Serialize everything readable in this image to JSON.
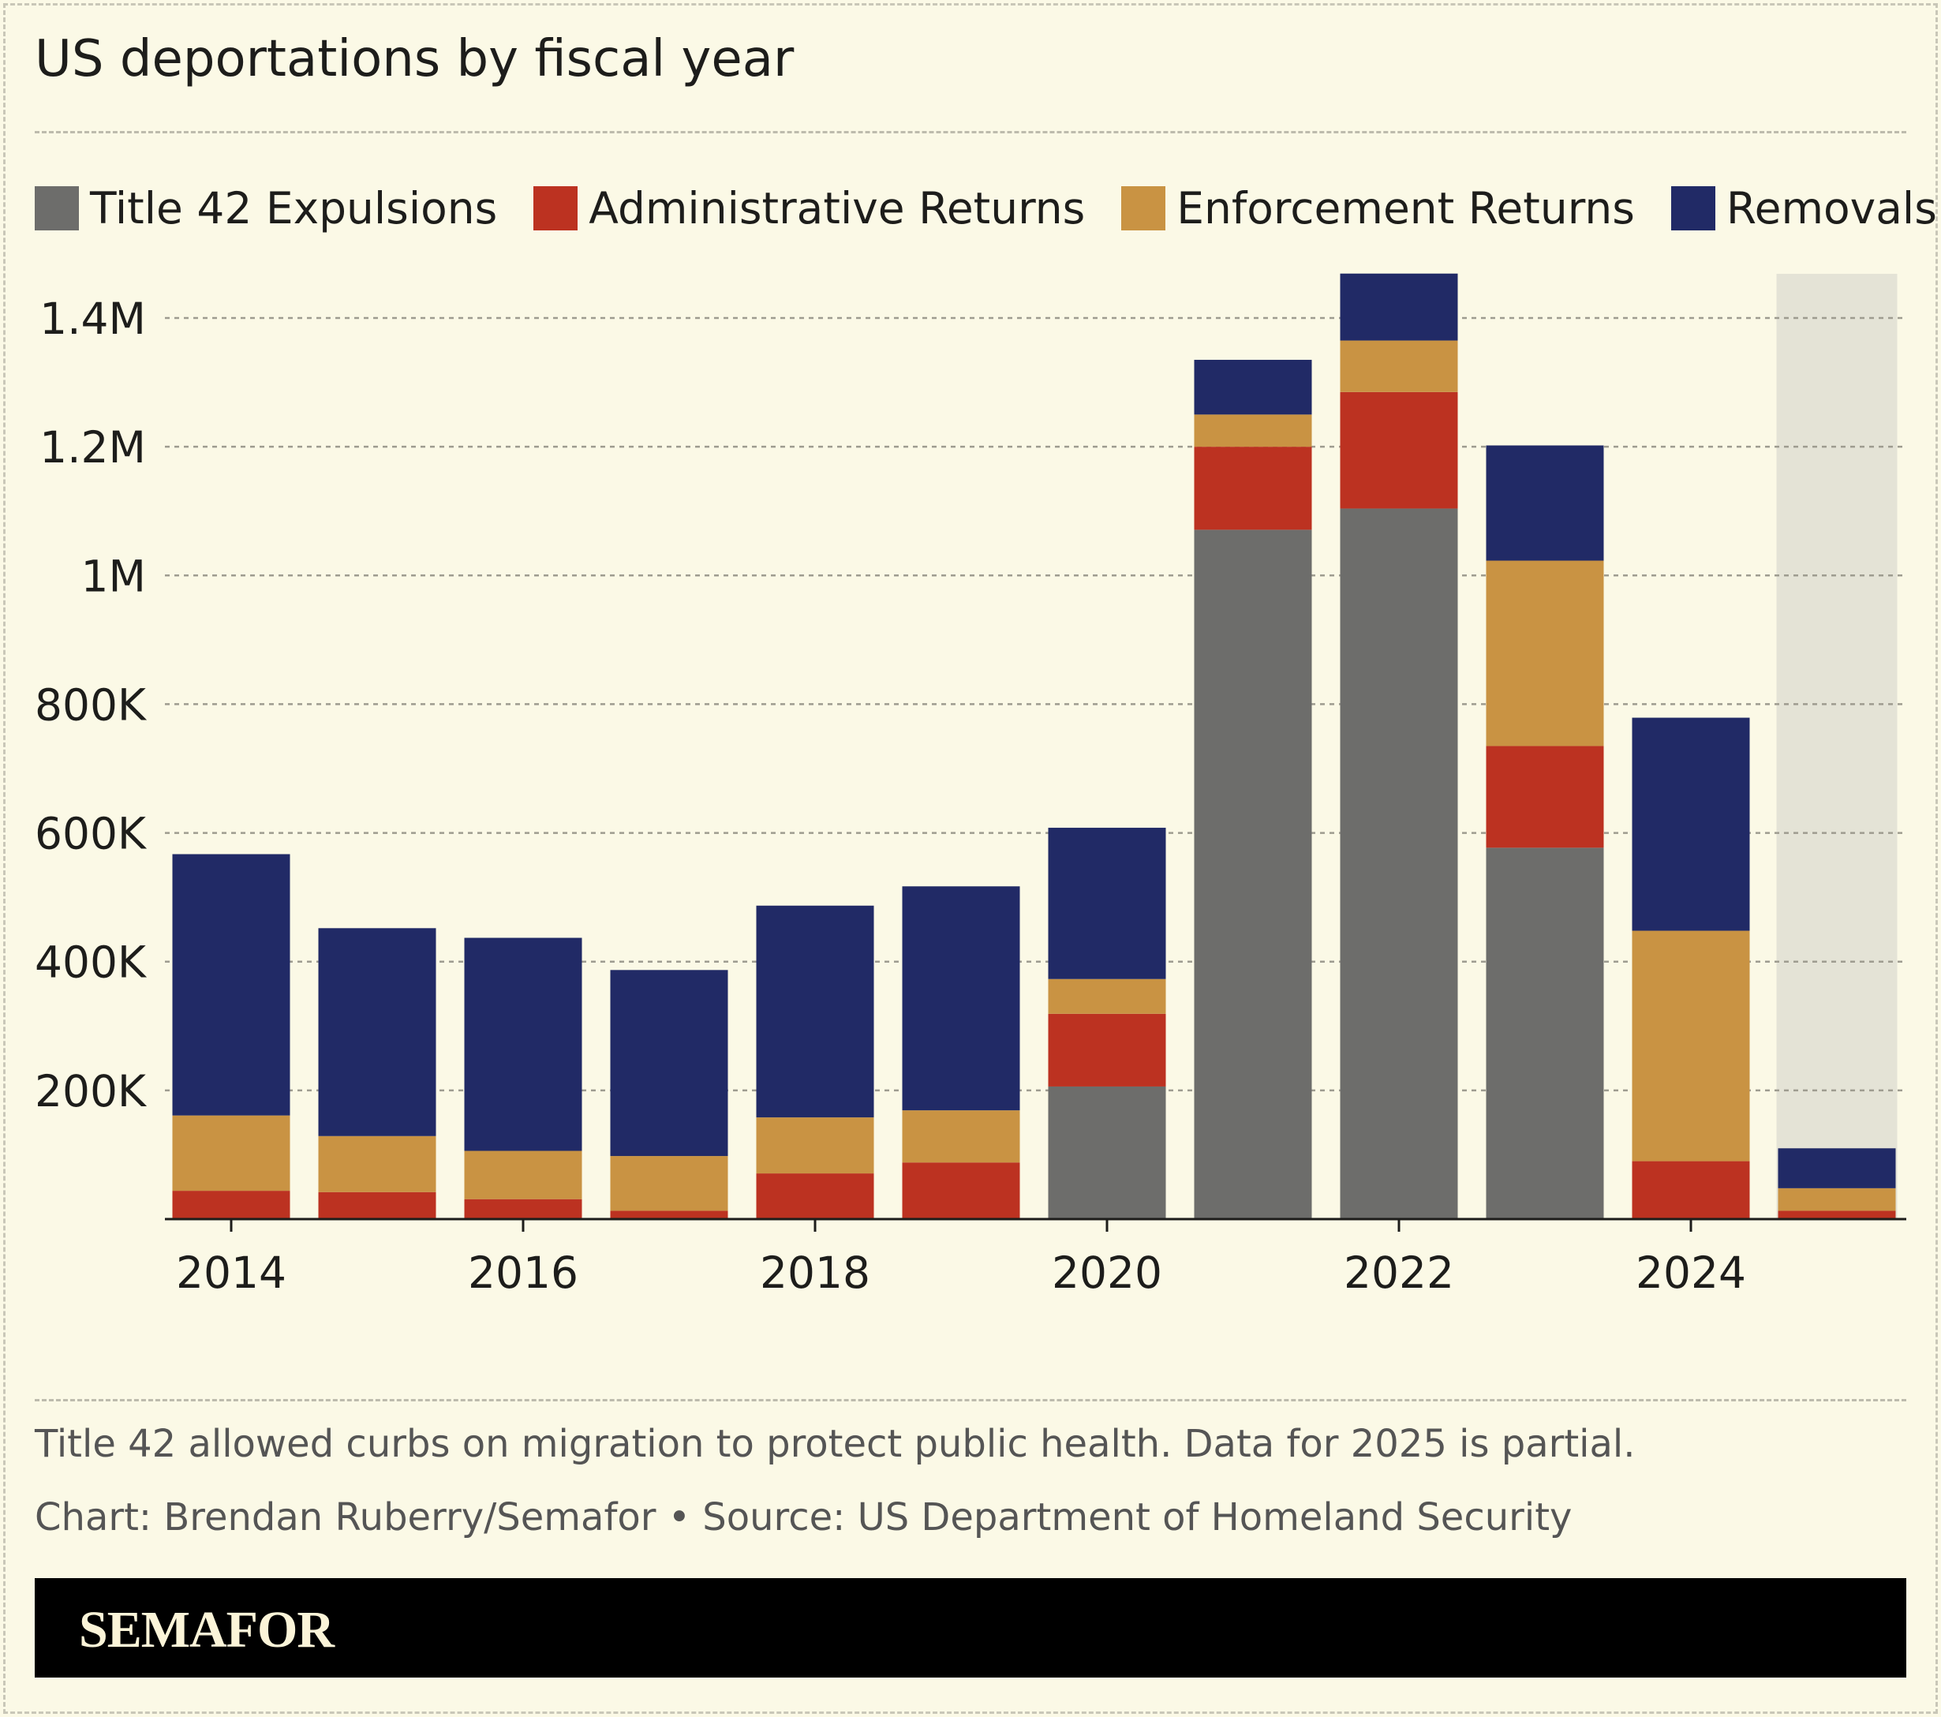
{
  "chart_data": {
    "type": "bar",
    "stacked": true,
    "title": "US deportations by fiscal year",
    "categories": [
      "2014",
      "2015",
      "2016",
      "2017",
      "2018",
      "2019",
      "2020",
      "2021",
      "2022",
      "2023",
      "2024",
      "2025"
    ],
    "x_tick_labels": [
      "2014",
      "2016",
      "2018",
      "2020",
      "2022",
      "2024"
    ],
    "y_tick_labels": [
      "200K",
      "400K",
      "600K",
      "800K",
      "1M",
      "1.2M",
      "1.4M"
    ],
    "y_ticks": [
      200000,
      400000,
      600000,
      800000,
      1000000,
      1200000,
      1400000
    ],
    "ylim": [
      0,
      1470000
    ],
    "grid": true,
    "legend_position": "top",
    "highlighted_category": "2025",
    "series": [
      {
        "name": "Title 42 Expulsions",
        "color": "#6d6d6b",
        "values": [
          0,
          0,
          0,
          0,
          0,
          0,
          206000,
          1071000,
          1104000,
          577000,
          0,
          0
        ]
      },
      {
        "name": "Administrative Returns",
        "color": "#bc3221",
        "values": [
          44000,
          42000,
          31000,
          13000,
          71000,
          88000,
          113000,
          129000,
          181000,
          158000,
          90000,
          13000
        ]
      },
      {
        "name": "Enforcement Returns",
        "color": "#c99343",
        "values": [
          117000,
          87000,
          75000,
          85000,
          87000,
          81000,
          54000,
          50000,
          80000,
          288000,
          358000,
          35000
        ]
      },
      {
        "name": "Removals",
        "color": "#212a66",
        "values": [
          406000,
          323000,
          331000,
          289000,
          329000,
          348000,
          235000,
          85000,
          104000,
          179000,
          331000,
          62000
        ]
      }
    ]
  },
  "notes": {
    "caption": "Title 42 allowed curbs on migration to protect public health. Data for 2025 is partial.",
    "credit": "Chart: Brendan Ruberry/Semafor • Source: US Department of Homeland Security"
  },
  "brand": {
    "logo_text": "SEMAFOR"
  }
}
